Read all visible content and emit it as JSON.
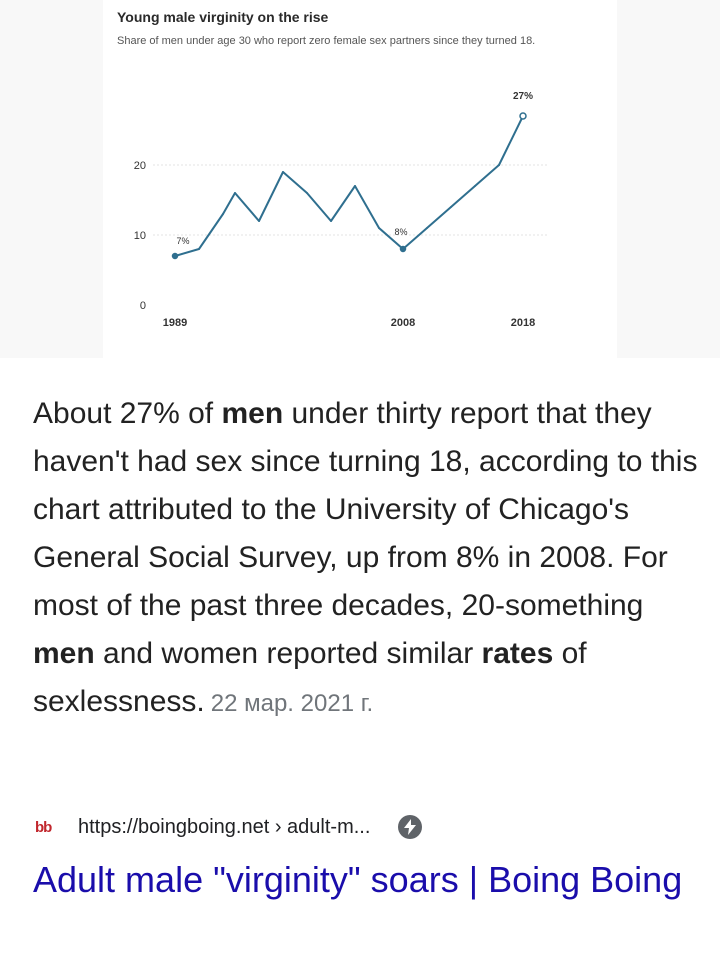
{
  "figure": {
    "chart_data": {
      "type": "line",
      "title": "Young male virginity on the rise",
      "subtitle": "Share of men under age 30 who report zero female sex partners since they turned 18.",
      "x": [
        1989,
        1991,
        1993,
        1994,
        1996,
        1998,
        2000,
        2002,
        2004,
        2006,
        2008,
        2010,
        2012,
        2014,
        2016,
        2018
      ],
      "values": [
        7,
        8,
        13,
        16,
        12,
        19,
        16,
        12,
        17,
        11,
        8,
        11,
        14,
        17,
        20,
        27
      ],
      "x_ticks": [
        "1989",
        "2008",
        "2018"
      ],
      "y_ticks": [
        "0",
        "10",
        "20"
      ],
      "ylim": [
        0,
        28
      ],
      "xlim": [
        1989,
        2018
      ],
      "data_labels": [
        {
          "x": 1989,
          "y": 7,
          "text": "7%"
        },
        {
          "x": 2008,
          "y": 8,
          "text": "8%"
        },
        {
          "x": 2018,
          "y": 27,
          "text": "27%"
        }
      ],
      "grid": true,
      "line_color": "#2f6f8f"
    }
  },
  "snippet": {
    "seg1": "About 27% of ",
    "bold1": "men",
    "seg2": " under thirty report that they haven't had sex since turning 18, according to this chart attributed to the University of Chicago's General Social Survey, up from 8% in 2008. For most of the past three decades, 20-something ",
    "bold2": "men",
    "seg3": " and women reported similar ",
    "bold3": "rates",
    "seg4": " of sexlessness.",
    "date": "22 мар. 2021 г."
  },
  "source": {
    "favicon_text": "bb",
    "url": "https://boingboing.net › adult-m...",
    "amp_icon": "lightning-bolt-icon"
  },
  "result": {
    "title": "Adult male \"virginity\" soars | Boing Boing"
  }
}
